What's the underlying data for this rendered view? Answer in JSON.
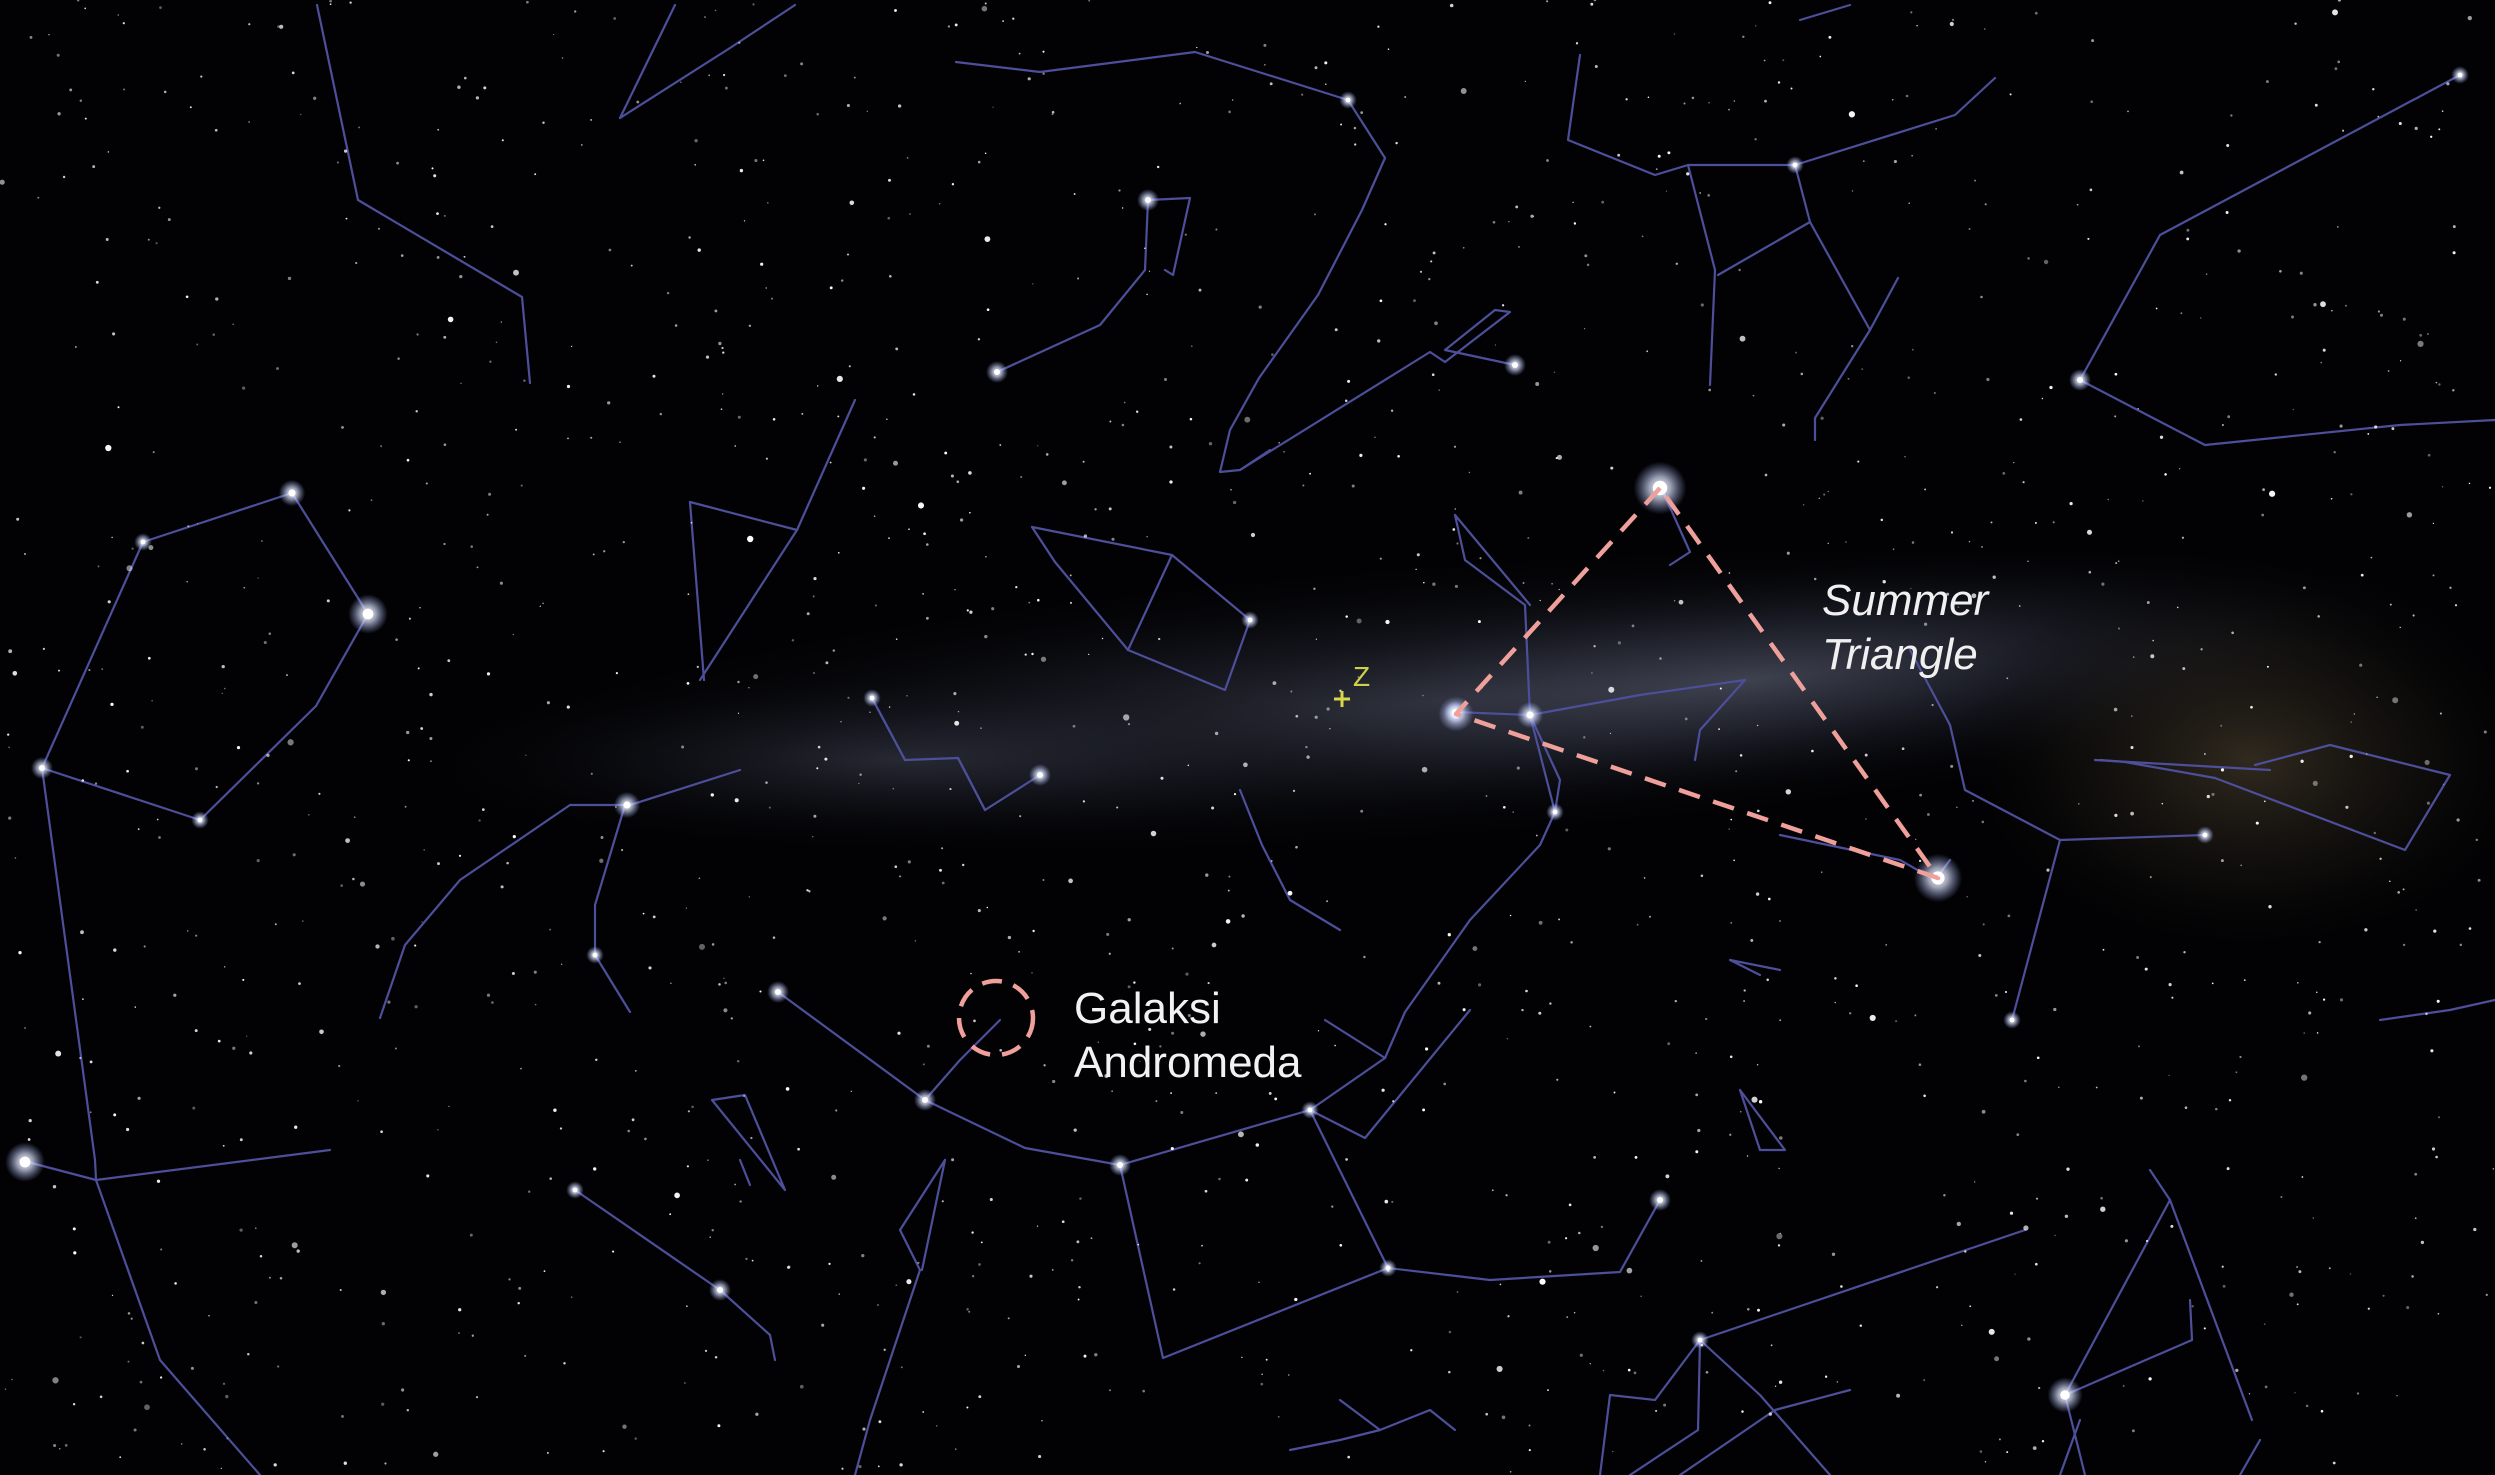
{
  "image": {
    "background_color": "#020204",
    "constellation_line_color": "#4d4f9a",
    "highlight_color": "#f0a09a",
    "zenith_marker_color": "#d8d84a"
  },
  "labels": {
    "andromeda": "Galaksi\nAndromeda",
    "summer_triangle": "Summer\nTriangle",
    "zenith": "Z"
  },
  "zenith_symbol": "+"
}
